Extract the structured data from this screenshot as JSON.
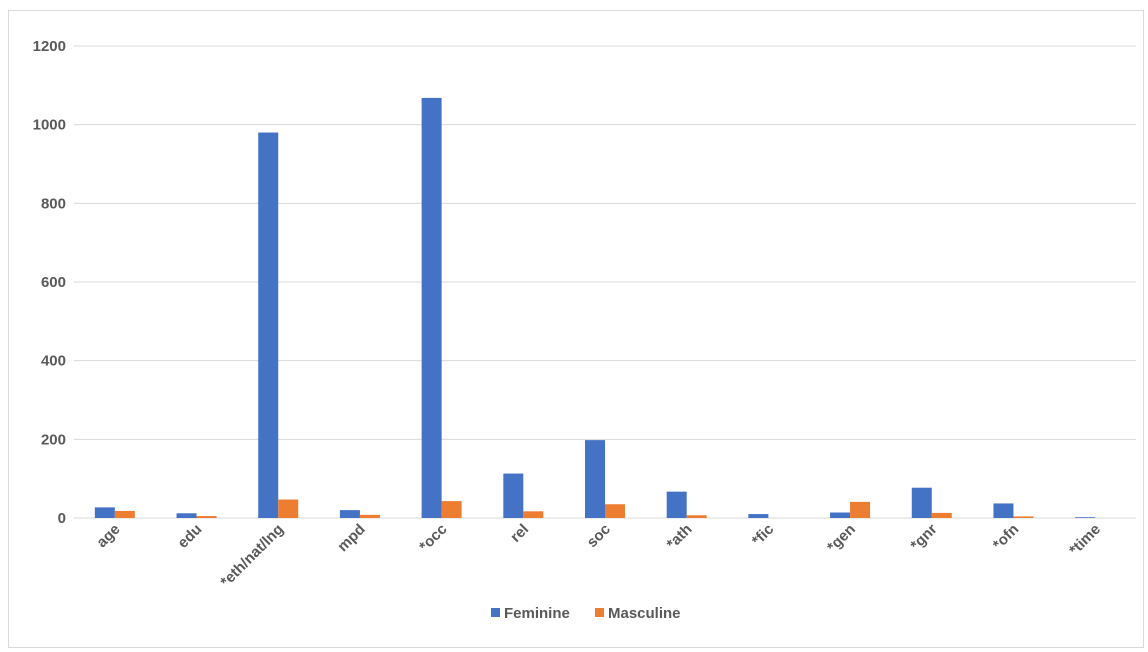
{
  "chart_data": {
    "type": "bar",
    "title": "",
    "xlabel": "",
    "ylabel": "",
    "ylim": [
      0,
      1200
    ],
    "yticks": [
      0,
      200,
      400,
      600,
      800,
      1000,
      1200
    ],
    "grid": true,
    "legend_position": "bottom",
    "categories": [
      "age",
      "edu",
      "*eth/nat/lng",
      "mpd",
      "*occ",
      "rel",
      "soc",
      "*ath",
      "*fic",
      "*gen",
      "*gnr",
      "*ofn",
      "*time"
    ],
    "series": [
      {
        "name": "Feminine",
        "color": "#4472c4",
        "values": [
          27,
          12,
          980,
          20,
          1068,
          113,
          198,
          67,
          10,
          14,
          77,
          37,
          2
        ]
      },
      {
        "name": "Masculine",
        "color": "#ed7d31",
        "values": [
          18,
          5,
          47,
          8,
          43,
          17,
          35,
          7,
          0,
          41,
          13,
          4,
          0
        ]
      }
    ]
  }
}
